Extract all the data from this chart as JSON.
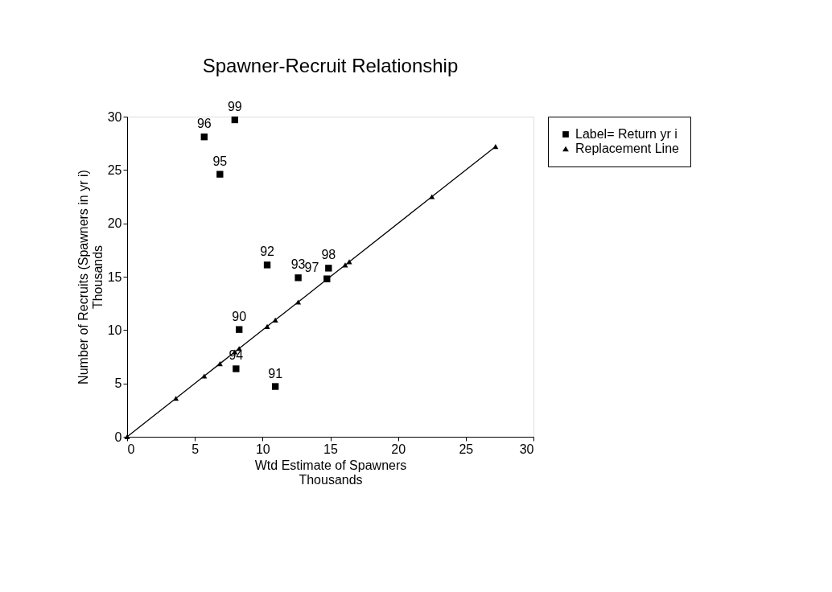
{
  "chart_data": {
    "type": "scatter",
    "title": "Spawner-Recruit Relationship",
    "xlabel": "Wtd Estimate of Spawners\nThousands",
    "ylabel": "Number of Recruits (Spawners in yr i)\nThousands",
    "xlim": [
      0,
      30
    ],
    "xticks": [
      0,
      5,
      10,
      15,
      20,
      25,
      30
    ],
    "ylim": [
      0,
      30
    ],
    "yticks": [
      0,
      5,
      10,
      15,
      20,
      25,
      30
    ],
    "grid": false,
    "legend": "right",
    "series": [
      {
        "name": "Label= Return yr i",
        "type": "scatter",
        "marker": "square",
        "color": "#000000",
        "x": [
          8.27,
          10.94,
          10.34,
          12.63,
          8.04,
          6.85,
          5.69,
          14.75,
          14.87,
          7.95
        ],
        "values": [
          10.05,
          4.71,
          16.1,
          14.9,
          6.37,
          24.6,
          28.1,
          14.8,
          15.8,
          29.7
        ]
      },
      {
        "name": "Replacement Line",
        "type": "line",
        "marker": "triangle",
        "line_style": "solid",
        "color": "#000000",
        "x": [
          0,
          3.6,
          5.69,
          6.85,
          7.95,
          8.27,
          10.34,
          10.94,
          12.63,
          14.75,
          16.1,
          16.4,
          22.5,
          27.2
        ],
        "values": [
          0,
          3.6,
          5.69,
          6.85,
          7.95,
          8.27,
          10.34,
          10.94,
          12.63,
          14.75,
          16.1,
          16.4,
          22.5,
          27.2
        ]
      }
    ],
    "annotations": [
      {
        "text": "90",
        "x": 8.27,
        "y": 10.05
      },
      {
        "text": "91",
        "x": 10.94,
        "y": 4.71
      },
      {
        "text": "92",
        "x": 10.34,
        "y": 16.1
      },
      {
        "text": "93",
        "x": 12.63,
        "y": 14.9
      },
      {
        "text": "94",
        "x": 8.04,
        "y": 6.37
      },
      {
        "text": "95",
        "x": 6.85,
        "y": 24.6
      },
      {
        "text": "96",
        "x": 5.69,
        "y": 28.1
      },
      {
        "text": "97",
        "x": 14.75,
        "y": 14.8
      },
      {
        "text": "98",
        "x": 14.87,
        "y": 15.8
      },
      {
        "text": "99",
        "x": 7.95,
        "y": 29.7
      }
    ]
  }
}
